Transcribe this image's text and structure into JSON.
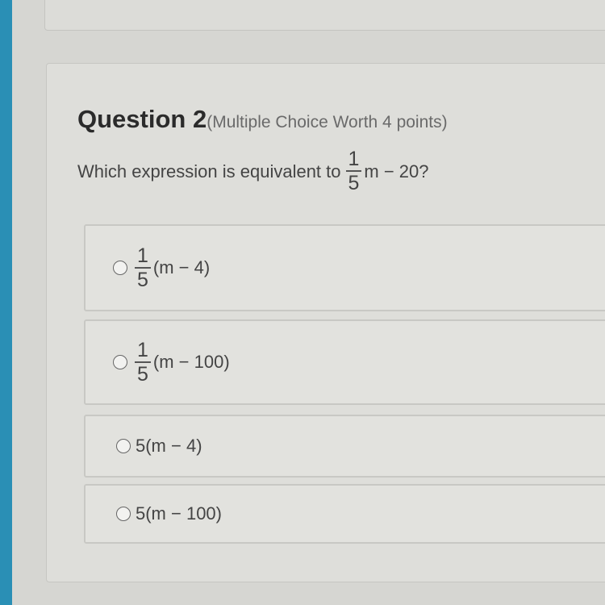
{
  "question": {
    "title": "Question 2",
    "subtitle": "(Multiple Choice Worth 4 points)",
    "prompt_prefix": "Which expression is equivalent to",
    "prompt_fraction": {
      "numerator": "1",
      "denominator": "5"
    },
    "prompt_suffix": "m − 20?"
  },
  "options": [
    {
      "fraction": {
        "numerator": "1",
        "denominator": "5"
      },
      "text": "(m − 4)"
    },
    {
      "fraction": {
        "numerator": "1",
        "denominator": "5"
      },
      "text": "(m − 100)"
    },
    {
      "text": "5(m − 4)"
    },
    {
      "text": "5(m − 100)"
    }
  ]
}
